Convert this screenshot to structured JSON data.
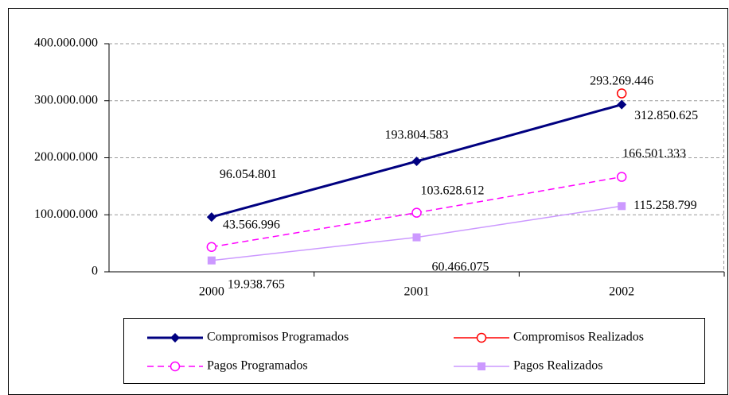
{
  "chart_data": {
    "type": "line",
    "categories": [
      "2000",
      "2001",
      "2002"
    ],
    "series": [
      {
        "name": "Compromisos Programados",
        "color": "#000080",
        "marker": "diamond",
        "dash": "solid",
        "values": [
          96054801,
          193804583,
          293269446
        ],
        "value_labels": [
          "96.054.801",
          "193.804.583",
          "293.269.446"
        ]
      },
      {
        "name": "Compromisos Realizados",
        "color": "#ff0000",
        "marker": "circle",
        "dash": "solid",
        "values": [
          null,
          null,
          312850625
        ],
        "value_labels": [
          null,
          null,
          "312.850.625"
        ]
      },
      {
        "name": "Pagos Programados",
        "color": "#ff00ff",
        "marker": "circle",
        "dash": "dashed",
        "values": [
          43566996,
          103628612,
          166501333
        ],
        "value_labels": [
          "43.566.996",
          "103.628.612",
          "166.501.333"
        ]
      },
      {
        "name": "Pagos Realizados",
        "color": "#cc99ff",
        "marker": "square",
        "dash": "solid",
        "values": [
          19938765,
          60466075,
          115258799
        ],
        "value_labels": [
          "19.938.765",
          "60.466.075",
          "115.258.799"
        ]
      }
    ],
    "ylim": [
      0,
      400000000
    ],
    "yticks": [
      0,
      {
        "value": 100000000,
        "label": "100.000.000"
      },
      {
        "value": 200000000,
        "label": "200.000.000"
      },
      {
        "value": 300000000,
        "label": "300.000.000"
      },
      {
        "value": 400000000,
        "label": "400.000.000"
      }
    ],
    "grid": true,
    "legend": "bottom"
  }
}
